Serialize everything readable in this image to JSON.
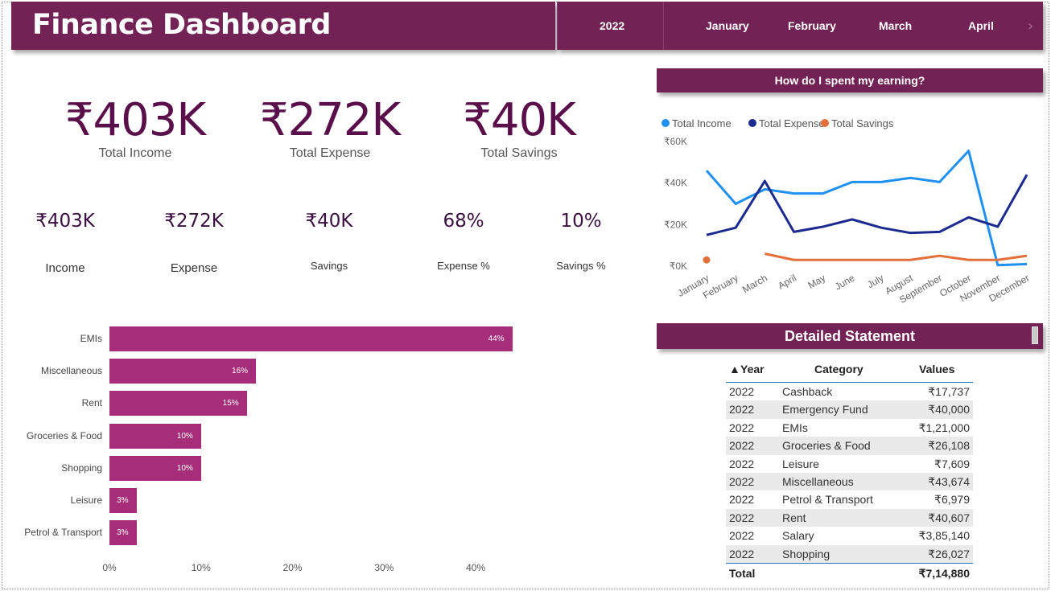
{
  "title": "Finance Dashboard",
  "filter": {
    "year": "2022",
    "months": [
      "January",
      "February",
      "March",
      "April"
    ],
    "next_icon": "chevron-right-icon"
  },
  "kpi_top": [
    {
      "value": "₹403K",
      "label": "Total Income"
    },
    {
      "value": "₹272K",
      "label": "Total Expense"
    },
    {
      "value": "₹40K",
      "label": "Total Savings"
    }
  ],
  "kpi_small": [
    {
      "value": "₹403K",
      "label": "Income"
    },
    {
      "value": "₹272K",
      "label": "Expense"
    },
    {
      "value": "₹40K",
      "label": "Savings"
    },
    {
      "value": "68%",
      "label": "Expense %"
    },
    {
      "value": "10%",
      "label": "Savings %"
    }
  ],
  "line_section_title": "How do I spent my earning?",
  "table_section_title": "Detailed Statement",
  "colors": {
    "brand": "#722255",
    "bar": "#a52d7a",
    "income": "#1f8ff0",
    "expense": "#1b2a8f",
    "savings": "#e3703a"
  },
  "chart_data": [
    {
      "type": "bar",
      "orientation": "horizontal",
      "categories": [
        "EMIs",
        "Miscellaneous",
        "Rent",
        "Groceries & Food",
        "Shopping",
        "Leisure",
        "Petrol & Transport"
      ],
      "values": [
        44,
        16,
        15,
        10,
        10,
        3,
        3
      ],
      "value_labels": [
        "44%",
        "16%",
        "15%",
        "10%",
        "10%",
        "3%",
        "3%"
      ],
      "xlim": [
        0,
        45
      ],
      "x_ticks": [
        "0%",
        "10%",
        "20%",
        "30%",
        "40%"
      ]
    },
    {
      "type": "line",
      "categories": [
        "January",
        "February",
        "March",
        "April",
        "May",
        "June",
        "July",
        "August",
        "September",
        "October",
        "November",
        "December"
      ],
      "series": [
        {
          "name": "Total Income",
          "values": [
            46000,
            30000,
            37000,
            35000,
            35000,
            40500,
            40500,
            42500,
            40500,
            55500,
            500,
            1000
          ]
        },
        {
          "name": "Total Expense",
          "values": [
            15000,
            18500,
            41000,
            16500,
            19000,
            22500,
            18500,
            16000,
            16500,
            23500,
            19000,
            44000
          ]
        },
        {
          "name": "Total Savings",
          "values": [
            3000,
            null,
            6000,
            3000,
            3000,
            3000,
            3000,
            3000,
            5000,
            3000,
            3000,
            5000
          ]
        }
      ],
      "y_ticks": [
        "₹0K",
        "₹20K",
        "₹40K",
        "₹60K"
      ],
      "ylim": [
        0,
        60000
      ],
      "legend": "top-left"
    }
  ],
  "table": {
    "headers": [
      "Year",
      "Category",
      "Values"
    ],
    "rows": [
      [
        "2022",
        "Cashback",
        "₹17,737"
      ],
      [
        "2022",
        "Emergency Fund",
        "₹40,000"
      ],
      [
        "2022",
        "EMIs",
        "₹1,21,000"
      ],
      [
        "2022",
        "Groceries & Food",
        "₹26,108"
      ],
      [
        "2022",
        "Leisure",
        "₹7,609"
      ],
      [
        "2022",
        "Miscellaneous",
        "₹43,674"
      ],
      [
        "2022",
        "Petrol & Transport",
        "₹6,979"
      ],
      [
        "2022",
        "Rent",
        "₹40,607"
      ],
      [
        "2022",
        "Salary",
        "₹3,85,140"
      ],
      [
        "2022",
        "Shopping",
        "₹26,027"
      ]
    ],
    "total_label": "Total",
    "total_value": "₹7,14,880"
  }
}
